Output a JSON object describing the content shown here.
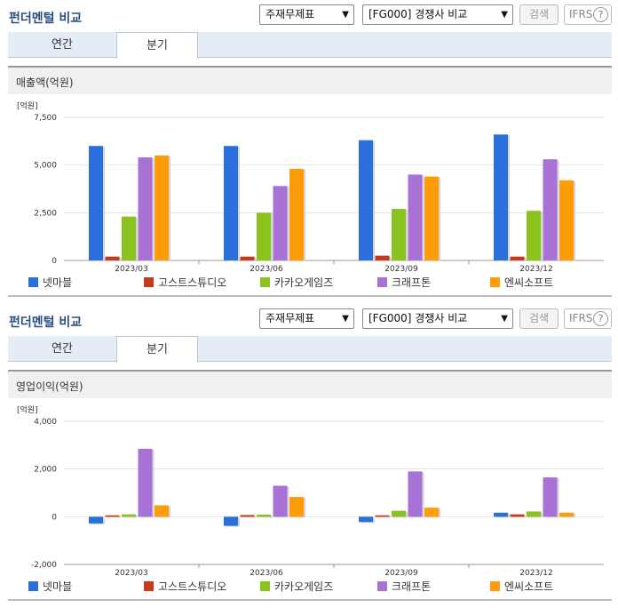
{
  "colors": {
    "netmarble": "#2a6fdb",
    "ghost": "#c8391b",
    "kakao": "#8ac21e",
    "krafton": "#a871d6",
    "ncsoft": "#ff9c0c"
  },
  "common": {
    "title": "펀더멘털 비교",
    "select_theme": "주재무제표",
    "select_peer": "[FG000] 경쟁사 비교",
    "search_button": "검색",
    "ifrs_label": "IFRS",
    "ifrs_help": "?",
    "tab_annual": "연간",
    "tab_quarter": "분기",
    "legend": [
      "넷마블",
      "고스트스튜디오",
      "카카오게임즈",
      "크래프톤",
      "엔씨소프트"
    ]
  },
  "panels": [
    {
      "header": "매출액(억원)",
      "chart_data": {
        "type": "bar",
        "unit_label": "[억원]",
        "categories": [
          "2023/03",
          "2023/06",
          "2023/09",
          "2023/12"
        ],
        "ylim": [
          0,
          7500
        ],
        "yticks": [
          0,
          2500,
          5000,
          7500
        ],
        "ytick_labels": [
          "0",
          "2,500",
          "5,000",
          "7,500"
        ],
        "series": [
          {
            "name": "넷마블",
            "values": [
              6000,
              6000,
              6300,
              6600
            ]
          },
          {
            "name": "고스트스튜디오",
            "values": [
              200,
              200,
              250,
              200
            ]
          },
          {
            "name": "카카오게임즈",
            "values": [
              2300,
              2500,
              2700,
              2600
            ]
          },
          {
            "name": "크래프톤",
            "values": [
              5400,
              3900,
              4500,
              5300
            ]
          },
          {
            "name": "엔씨소프트",
            "values": [
              5500,
              4800,
              4400,
              4200
            ]
          }
        ]
      }
    },
    {
      "header": "영업이익(억원)",
      "chart_data": {
        "type": "bar",
        "unit_label": "[억원]",
        "categories": [
          "2023/03",
          "2023/06",
          "2023/09",
          "2023/12"
        ],
        "ylim": [
          -2000,
          4000
        ],
        "yticks": [
          -2000,
          0,
          2000,
          4000
        ],
        "ytick_labels": [
          "-2,000",
          "0",
          "2,000",
          "4,000"
        ],
        "series": [
          {
            "name": "넷마블",
            "values": [
              -280,
              -380,
              -220,
              170
            ]
          },
          {
            "name": "고스트스튜디오",
            "values": [
              60,
              70,
              60,
              100
            ]
          },
          {
            "name": "카카오게임즈",
            "values": [
              100,
              90,
              250,
              220
            ]
          },
          {
            "name": "크래프톤",
            "values": [
              2850,
              1300,
              1900,
              1650
            ]
          },
          {
            "name": "엔씨소프트",
            "values": [
              480,
              830,
              380,
              170
            ]
          }
        ]
      }
    }
  ]
}
